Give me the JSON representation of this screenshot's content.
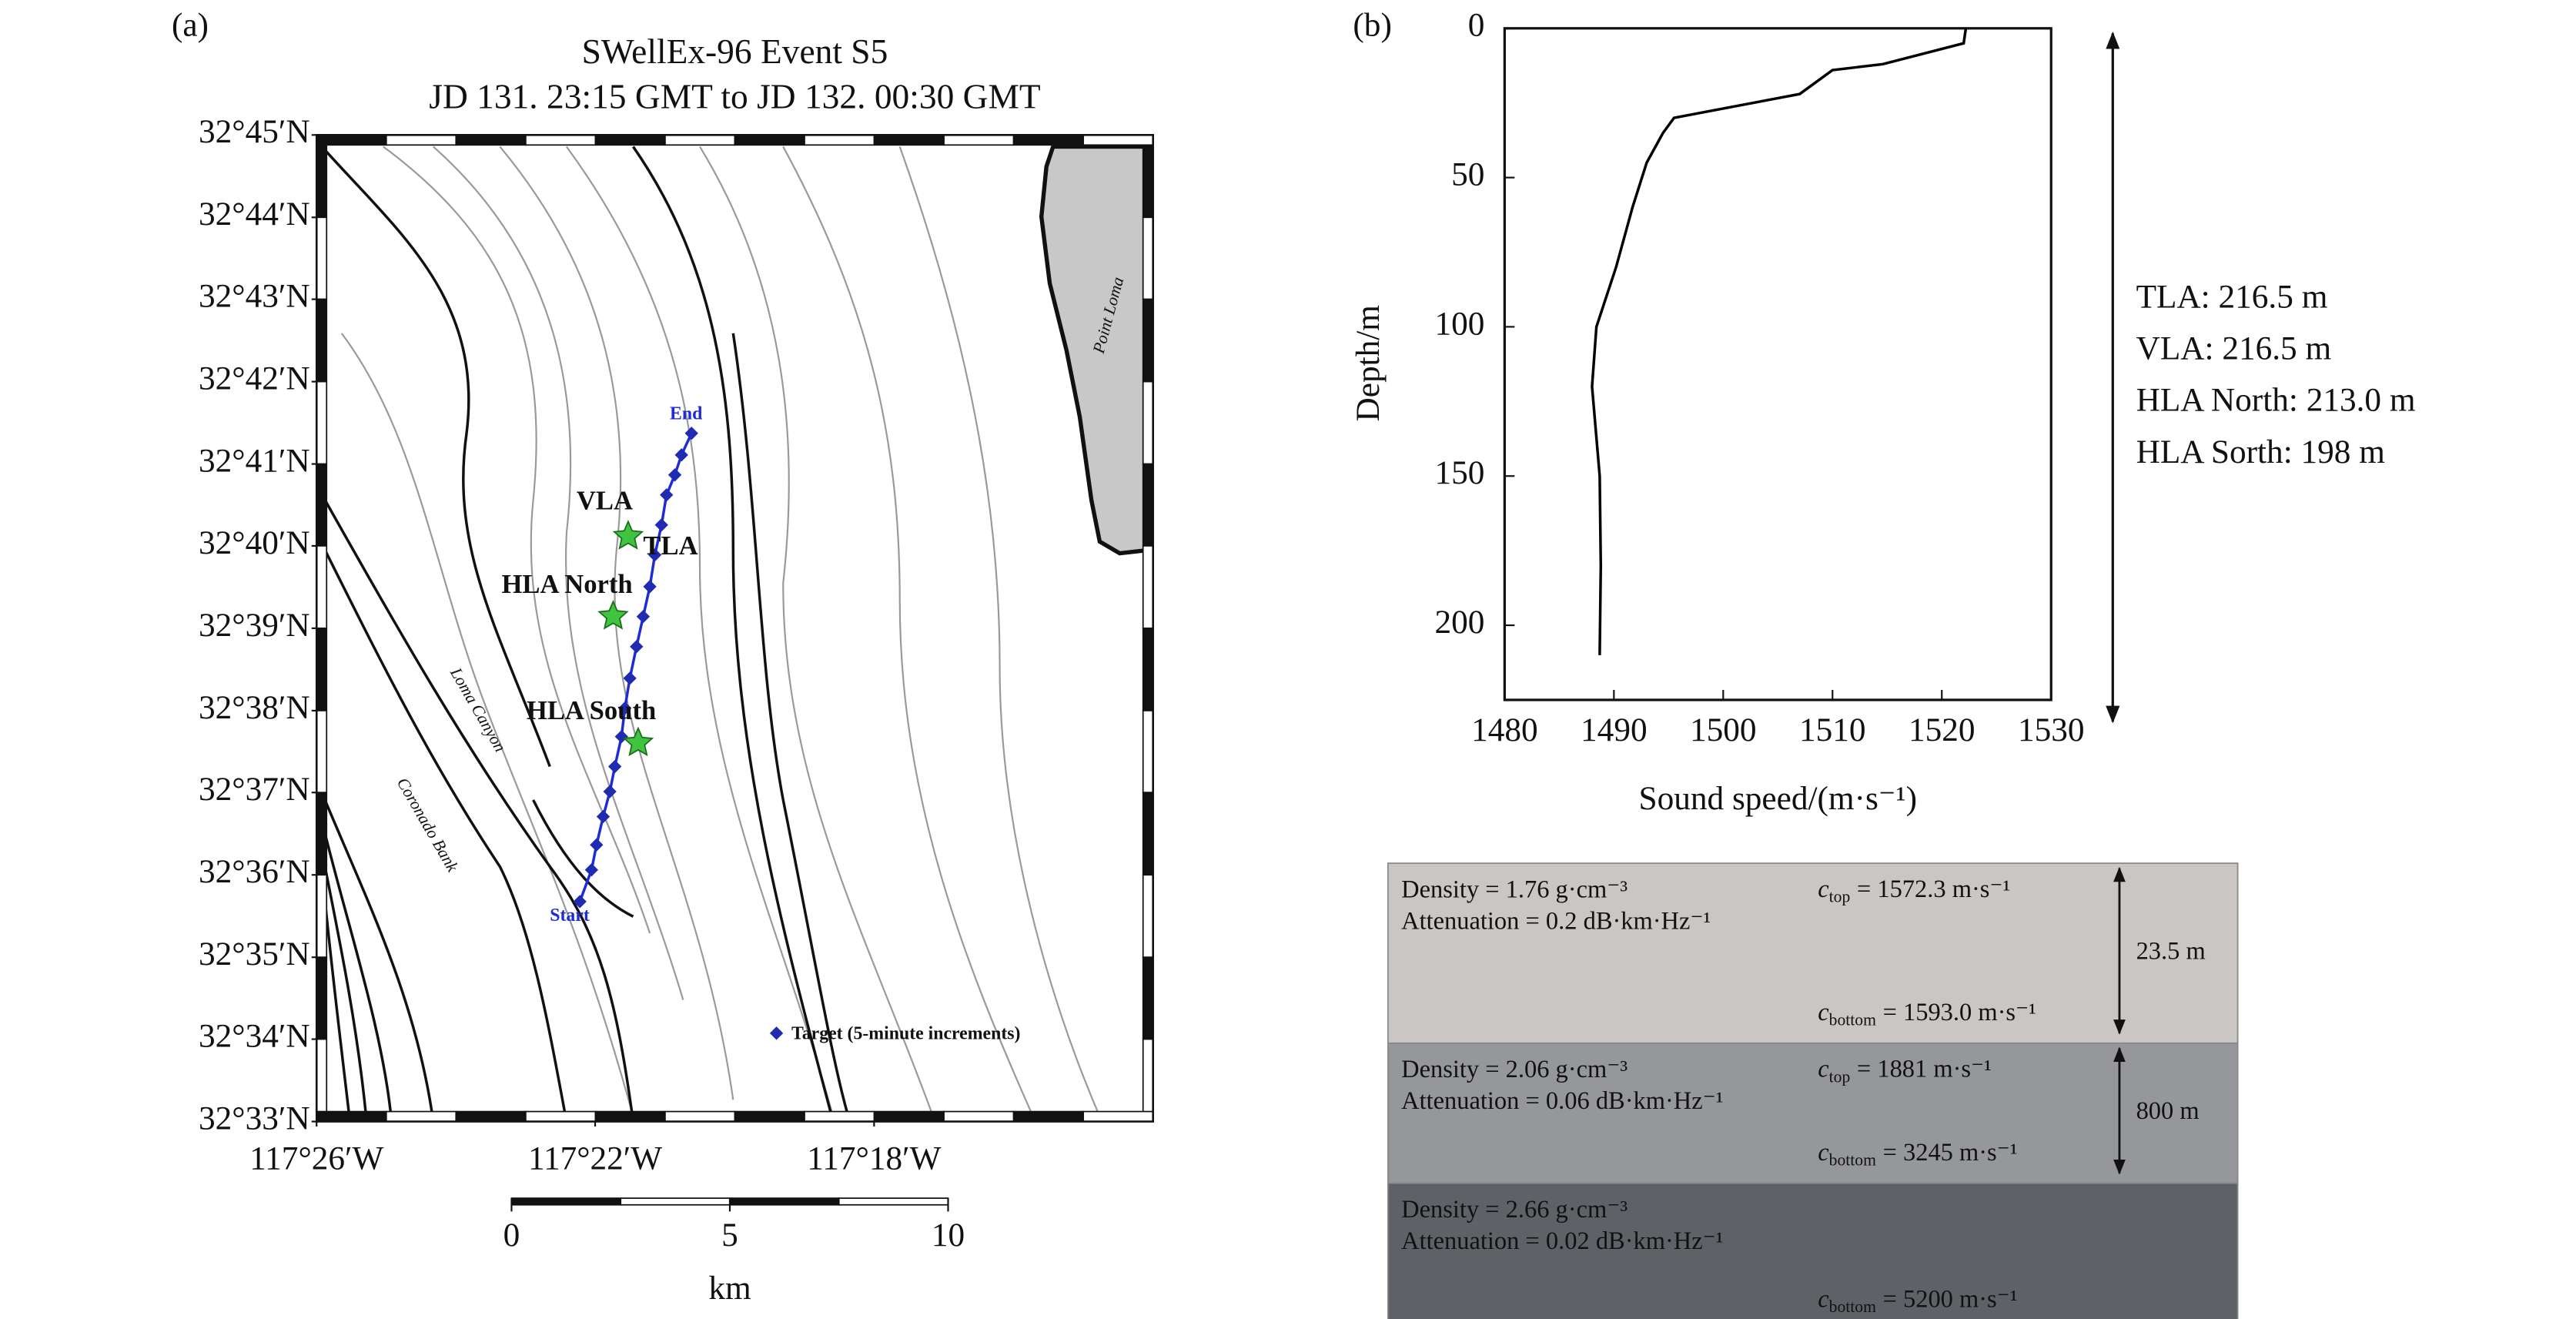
{
  "chart_data": [
    {
      "type": "map",
      "panel_label": "(a)",
      "title": [
        "SWellEx-96 Event S5",
        "JD 131. 23:15 GMT to JD 132. 00:30 GMT"
      ],
      "ylim": [
        32.55,
        32.75
      ],
      "yticks": [
        {
          "value": 32.75,
          "label": "32°45′N"
        },
        {
          "value": 32.7333,
          "label": "32°44′N"
        },
        {
          "value": 32.7167,
          "label": "32°43′N"
        },
        {
          "value": 32.7,
          "label": "32°42′N"
        },
        {
          "value": 32.6833,
          "label": "32°41′N"
        },
        {
          "value": 32.6667,
          "label": "32°40′N"
        },
        {
          "value": 32.65,
          "label": "32°39′N"
        },
        {
          "value": 32.6333,
          "label": "32°38′N"
        },
        {
          "value": 32.6167,
          "label": "32°37′N"
        },
        {
          "value": 32.6,
          "label": "32°36′N"
        },
        {
          "value": 32.5833,
          "label": "32°35′N"
        },
        {
          "value": 32.5667,
          "label": "32°34′N"
        },
        {
          "value": 32.55,
          "label": "32°33′N"
        }
      ],
      "xlim": [
        -117.4333,
        -117.2333
      ],
      "xticks": [
        {
          "value": -117.4333,
          "label": "117°26′W"
        },
        {
          "value": -117.3667,
          "label": "117°22′W"
        },
        {
          "value": -117.3,
          "label": "117°18′W"
        }
      ],
      "annotations": [
        "VLA",
        "TLA",
        "HLA North",
        "HLA South",
        "Start",
        "End",
        "Target (5-minute increments)",
        "Point Loma",
        "Loma Canyon",
        "Coronado Bank"
      ],
      "scale_bar": {
        "ticks": [
          0,
          5,
          10
        ],
        "label": "km"
      }
    },
    {
      "type": "line",
      "panel_label": "(b)",
      "xlabel": "Sound speed/(m·s⁻¹)",
      "ylabel": "Depth/m",
      "x": [
        1522.2,
        1522,
        1514.6,
        1510,
        1507,
        1502.7,
        1495.5,
        1494.5,
        1493,
        1491.7,
        1490.2,
        1488.4,
        1488,
        1488.7,
        1488.8,
        1488.7
      ],
      "values": [
        0,
        5,
        12,
        14,
        22,
        25,
        30,
        35,
        45,
        60,
        80,
        100,
        120,
        150,
        180,
        210
      ],
      "color": "#000000",
      "xlim": [
        1480,
        1530
      ],
      "xticks": [
        1480,
        1490,
        1500,
        1510,
        1520,
        1530
      ],
      "ylim": [
        0,
        225
      ],
      "yticks": [
        0,
        50,
        100,
        150,
        200
      ],
      "y_inverted": true,
      "annotations": [
        "TLA: 216.5 m",
        "VLA: 216.5 m",
        "HLA North: 213.0 m",
        "HLA Sorth: 198 m"
      ]
    }
  ],
  "sediment_layers": [
    {
      "density": "Density = 1.76 g·cm⁻³",
      "attenuation": "Attenuation = 0.2 dB·km·Hz⁻¹",
      "c_top": {
        "symbol": "c",
        "sub": "top",
        "text": "= 1572.3 m·s⁻¹"
      },
      "c_bottom": {
        "symbol": "c",
        "sub": "bottom",
        "text": "= 1593.0 m·s⁻¹"
      },
      "thickness": "23.5 m"
    },
    {
      "density": "Density = 2.06 g·cm⁻³",
      "attenuation": "Attenuation = 0.06 dB·km·Hz⁻¹",
      "c_top": {
        "symbol": "c",
        "sub": "top",
        "text": "= 1881 m·s⁻¹"
      },
      "c_bottom": {
        "symbol": "c",
        "sub": "bottom",
        "text": "= 3245 m·s⁻¹"
      },
      "thickness": "800 m"
    },
    {
      "density": "Density = 2.66 g·cm⁻³",
      "attenuation": "Attenuation = 0.02 dB·km·Hz⁻¹",
      "c_bottom": {
        "symbol": "c",
        "sub": "bottom",
        "text": "= 5200 m·s⁻¹"
      }
    }
  ]
}
